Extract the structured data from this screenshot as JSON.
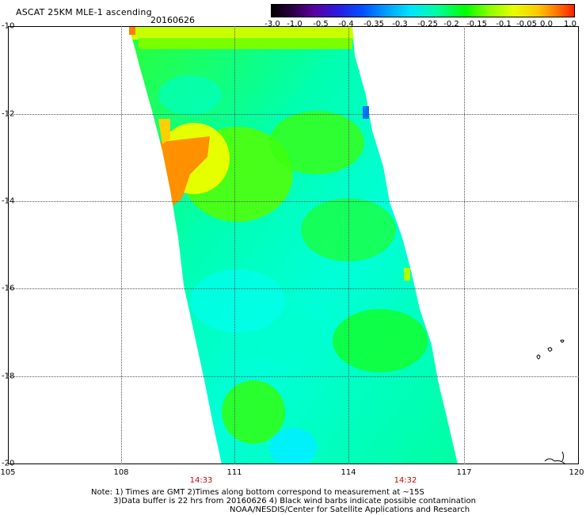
{
  "header": {
    "title": "ASCAT 25KM MLE-1 ascending",
    "date": "20160626"
  },
  "colorbar": {
    "labels": [
      "-3.0",
      "-1.0",
      "-0.5",
      "-0.4",
      "-0.35",
      "-0.3",
      "-0.25",
      "-0.2",
      "-0.15",
      "-0.1",
      "-0.05",
      "0.0",
      "1.0"
    ]
  },
  "map": {
    "lat_labels": [
      "-10",
      "-12",
      "-14",
      "-16",
      "-18",
      "-20"
    ],
    "lon_labels": [
      "105",
      "108",
      "111",
      "114",
      "117",
      "120"
    ],
    "times": [
      "14:33",
      "14:32"
    ]
  },
  "notes": {
    "line1": "Note: 1) Times are GMT 2)Times along bottom correspond to measurement at ~15S",
    "line2": "3)Data buffer is 22 hrs from 20160626 4) Black wind barbs indicate possible contamination",
    "line3": "NOAA/NESDIS/Center for Satellite Applications and Research"
  },
  "colors": {
    "cyan": "#00ffe0",
    "green": "#00ff40",
    "yellow": "#e8ff00",
    "orange": "#ff8000"
  }
}
